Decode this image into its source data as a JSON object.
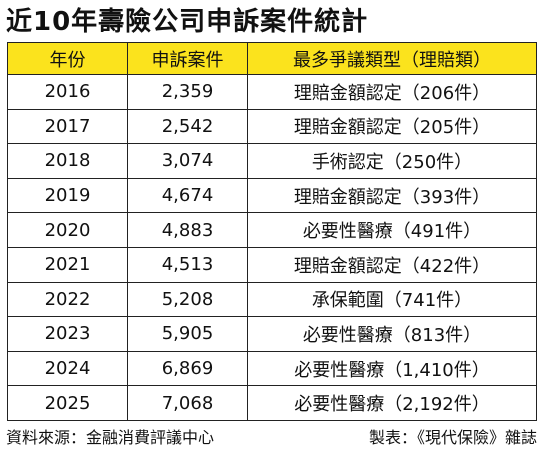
{
  "title": "近10年壽險公司申訴案件統計",
  "table": {
    "headers": [
      "年份",
      "申訴案件",
      "最多爭議類型（理賠類）"
    ],
    "header_bg": "#fbe31d",
    "rows": [
      {
        "year": "2016",
        "cases": "2,359",
        "type": "理賠金額認定（206件）"
      },
      {
        "year": "2017",
        "cases": "2,542",
        "type": "理賠金額認定（205件）"
      },
      {
        "year": "2018",
        "cases": "3,074",
        "type": "手術認定（250件）"
      },
      {
        "year": "2019",
        "cases": "4,674",
        "type": "理賠金額認定（393件）"
      },
      {
        "year": "2020",
        "cases": "4,883",
        "type": "必要性醫療（491件）"
      },
      {
        "year": "2021",
        "cases": "4,513",
        "type": "理賠金額認定（422件）"
      },
      {
        "year": "2022",
        "cases": "5,208",
        "type": "承保範圍（741件）"
      },
      {
        "year": "2023",
        "cases": "5,905",
        "type": "必要性醫療（813件）"
      },
      {
        "year": "2024",
        "cases": "6,869",
        "type": "必要性醫療（1,410件）"
      },
      {
        "year": "2025",
        "cases": "7,068",
        "type": "必要性醫療（2,192件）"
      }
    ]
  },
  "footer": {
    "source": "資料來源：金融消費評議中心",
    "credit": "製表：《現代保險》雜誌"
  }
}
